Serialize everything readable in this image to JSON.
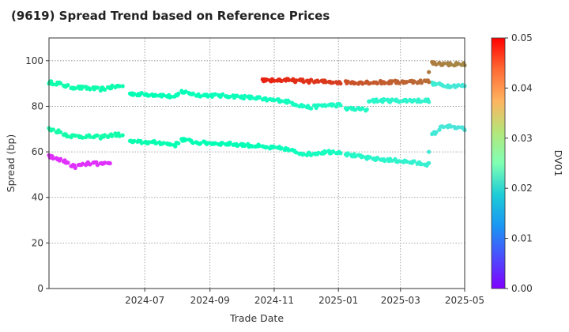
{
  "chart_data": {
    "type": "scatter",
    "title": "(9619)   Spread Trend based on Reference Prices",
    "xlabel": "Trade Date",
    "ylabel": "Spread (bp)",
    "colorbar_label": "DV01",
    "xlim": [
      "2024-04-01",
      "2025-05-01"
    ],
    "ylim": [
      0,
      110
    ],
    "x_ticks": [
      "2024-07",
      "2024-09",
      "2024-11",
      "2025-01",
      "2025-03",
      "2025-05"
    ],
    "y_ticks": [
      0,
      20,
      40,
      60,
      80,
      100
    ],
    "colorbar_range": [
      0,
      0.05
    ],
    "colorbar_ticks": [
      "0.00",
      "0.01",
      "0.02",
      "0.03",
      "0.04",
      "0.05"
    ],
    "colormap": "rainbow",
    "grid": true,
    "series": [
      {
        "start": "2024-04-01",
        "end": "2024-06-10",
        "dv01_start": 0.0265,
        "dv01_end": 0.026,
        "anchors": [
          [
            "2024-04-01",
            90.5
          ],
          [
            "2024-04-10",
            90.0
          ],
          [
            "2024-04-20",
            88.5
          ],
          [
            "2024-05-05",
            88.0
          ],
          [
            "2024-05-20",
            87.5
          ],
          [
            "2024-06-01",
            88.5
          ],
          [
            "2024-06-10",
            89.0
          ]
        ]
      },
      {
        "start": "2024-06-15",
        "end": "2024-10-18",
        "dv01_start": 0.025,
        "dv01_end": 0.0235,
        "anchors": [
          [
            "2024-06-15",
            85.5
          ],
          [
            "2024-07-15",
            85.0
          ],
          [
            "2024-07-30",
            84.0
          ],
          [
            "2024-08-05",
            86.5
          ],
          [
            "2024-08-20",
            85.0
          ],
          [
            "2024-09-20",
            84.5
          ],
          [
            "2024-10-18",
            83.5
          ]
        ]
      },
      {
        "start": "2024-10-20",
        "end": "2025-01-05",
        "dv01_start": 0.0235,
        "dv01_end": 0.022,
        "anchors": [
          [
            "2024-10-20",
            83.0
          ],
          [
            "2024-11-10",
            82.5
          ],
          [
            "2024-11-25",
            80.5
          ],
          [
            "2024-12-05",
            79.5
          ],
          [
            "2024-12-20",
            80.5
          ],
          [
            "2025-01-05",
            80.5
          ]
        ]
      },
      {
        "start": "2025-01-08",
        "end": "2025-01-28",
        "dv01_start": 0.022,
        "dv01_end": 0.022,
        "anchors": [
          [
            "2025-01-08",
            79.0
          ],
          [
            "2025-01-28",
            78.5
          ]
        ]
      },
      {
        "start": "2025-01-30",
        "end": "2025-03-28",
        "dv01_start": 0.021,
        "dv01_end": 0.02,
        "anchors": [
          [
            "2025-01-30",
            82.5
          ],
          [
            "2025-03-28",
            82.5
          ]
        ]
      },
      {
        "start": "2025-03-29",
        "end": "2025-05-01",
        "dv01_start": 0.019,
        "dv01_end": 0.018,
        "anchors": [
          [
            "2025-03-29",
            90.0
          ],
          [
            "2025-04-15",
            89.0
          ],
          [
            "2025-05-01",
            89.0
          ]
        ]
      },
      {
        "start": "2024-04-01",
        "end": "2024-06-10",
        "dv01_start": 0.027,
        "dv01_end": 0.0265,
        "anchors": [
          [
            "2024-04-01",
            70.0
          ],
          [
            "2024-04-10",
            69.0
          ],
          [
            "2024-04-20",
            67.0
          ],
          [
            "2024-05-20",
            66.5
          ],
          [
            "2024-06-01",
            67.5
          ],
          [
            "2024-06-10",
            67.5
          ]
        ]
      },
      {
        "start": "2024-06-15",
        "end": "2024-10-18",
        "dv01_start": 0.026,
        "dv01_end": 0.0245,
        "anchors": [
          [
            "2024-06-15",
            64.5
          ],
          [
            "2024-07-15",
            64.0
          ],
          [
            "2024-07-30",
            63.0
          ],
          [
            "2024-08-05",
            65.5
          ],
          [
            "2024-08-20",
            64.0
          ],
          [
            "2024-09-20",
            63.5
          ],
          [
            "2024-10-18",
            62.5
          ]
        ]
      },
      {
        "start": "2024-10-20",
        "end": "2025-01-05",
        "dv01_start": 0.024,
        "dv01_end": 0.0225,
        "anchors": [
          [
            "2024-10-20",
            62.0
          ],
          [
            "2024-11-10",
            61.5
          ],
          [
            "2024-11-25",
            59.5
          ],
          [
            "2024-12-05",
            59.0
          ],
          [
            "2024-12-20",
            60.0
          ],
          [
            "2025-01-05",
            60.0
          ]
        ]
      },
      {
        "start": "2025-01-08",
        "end": "2025-03-28",
        "dv01_start": 0.0215,
        "dv01_end": 0.0195,
        "anchors": [
          [
            "2025-01-08",
            59.0
          ],
          [
            "2025-02-01",
            57.0
          ],
          [
            "2025-03-01",
            56.0
          ],
          [
            "2025-03-28",
            54.5
          ]
        ]
      },
      {
        "start": "2025-03-29",
        "end": "2025-05-01",
        "dv01_start": 0.0185,
        "dv01_end": 0.0175,
        "anchors": [
          [
            "2025-03-29",
            67.0
          ],
          [
            "2025-04-05",
            69.0
          ],
          [
            "2025-04-10",
            71.5
          ],
          [
            "2025-05-01",
            70.0
          ]
        ]
      },
      {
        "start": "2024-04-01",
        "end": "2024-05-29",
        "dv01_start": 0.003,
        "dv01_end": 0.003,
        "anchors": [
          [
            "2024-04-01",
            58.0
          ],
          [
            "2024-04-15",
            56.0
          ],
          [
            "2024-04-25",
            53.5
          ],
          [
            "2024-05-10",
            55.0
          ],
          [
            "2024-05-29",
            54.5
          ]
        ]
      },
      {
        "start": "2024-10-20",
        "end": "2025-01-05",
        "dv01_start": 0.048,
        "dv01_end": 0.046,
        "anchors": [
          [
            "2024-10-20",
            91.5
          ],
          [
            "2024-11-10",
            91.5
          ],
          [
            "2024-12-05",
            91.0
          ],
          [
            "2025-01-05",
            90.5
          ]
        ]
      },
      {
        "start": "2025-01-08",
        "end": "2025-03-28",
        "dv01_start": 0.045,
        "dv01_end": 0.043,
        "anchors": [
          [
            "2025-01-08",
            90.5
          ],
          [
            "2025-02-15",
            90.5
          ],
          [
            "2025-03-28",
            91.0
          ]
        ]
      },
      {
        "start": "2025-03-29",
        "end": "2025-05-01",
        "dv01_start": 0.042,
        "dv01_end": 0.041,
        "anchors": [
          [
            "2025-03-29",
            99.0
          ],
          [
            "2025-04-15",
            98.5
          ],
          [
            "2025-05-01",
            98.5
          ]
        ]
      }
    ],
    "extra_points": [
      {
        "x": "2025-03-28",
        "y": 95.0,
        "dv01": 0.042
      },
      {
        "x": "2025-03-28",
        "y": 60.0,
        "dv01": 0.0185
      }
    ]
  }
}
